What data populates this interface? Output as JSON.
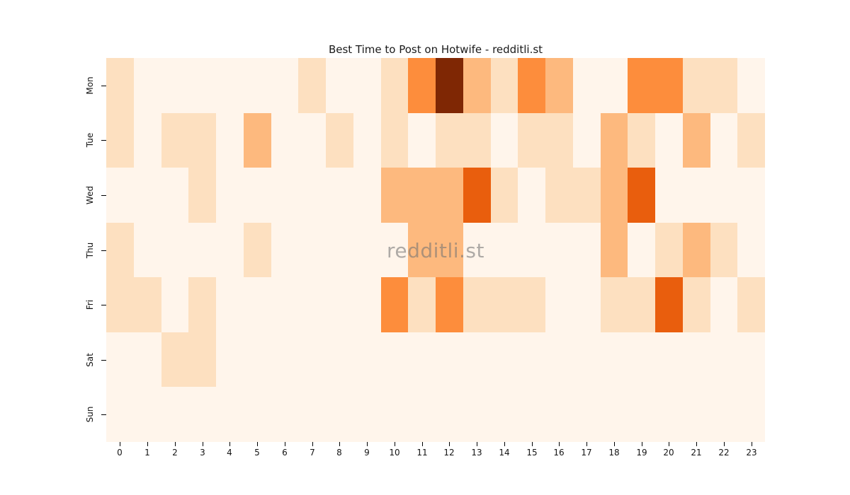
{
  "title": "Best Time to Post on Hotwife - redditli.st",
  "watermark": "redditli.st",
  "chart_data": {
    "type": "heatmap",
    "title": "Best Time to Post on Hotwife - redditli.st",
    "xlabel": "",
    "ylabel": "",
    "x_labels": [
      "0",
      "1",
      "2",
      "3",
      "4",
      "5",
      "6",
      "7",
      "8",
      "9",
      "10",
      "11",
      "12",
      "13",
      "14",
      "15",
      "16",
      "17",
      "18",
      "19",
      "20",
      "21",
      "22",
      "23"
    ],
    "y_labels": [
      "Mon",
      "Tue",
      "Wed",
      "Thu",
      "Fri",
      "Sat",
      "Sun"
    ],
    "values": [
      [
        1,
        0,
        0,
        0,
        0,
        0,
        0,
        1,
        0,
        0,
        1,
        3,
        6,
        2,
        1,
        3,
        2,
        0,
        0,
        3,
        3,
        1,
        1,
        0
      ],
      [
        1,
        0,
        1,
        1,
        0,
        2,
        0,
        0,
        1,
        0,
        1,
        0,
        1,
        1,
        0,
        1,
        1,
        0,
        2,
        1,
        0,
        2,
        0,
        1
      ],
      [
        0,
        0,
        0,
        1,
        0,
        0,
        0,
        0,
        0,
        0,
        2,
        2,
        2,
        4,
        1,
        0,
        1,
        1,
        2,
        4,
        0,
        0,
        0,
        0
      ],
      [
        1,
        0,
        0,
        0,
        0,
        1,
        0,
        0,
        0,
        0,
        0,
        2,
        2,
        0,
        0,
        0,
        0,
        0,
        2,
        0,
        1,
        2,
        1,
        0
      ],
      [
        1,
        1,
        0,
        1,
        0,
        0,
        0,
        0,
        0,
        0,
        3,
        1,
        3,
        1,
        1,
        1,
        0,
        0,
        1,
        1,
        4,
        1,
        0,
        1
      ],
      [
        0,
        0,
        1,
        1,
        0,
        0,
        0,
        0,
        0,
        0,
        0,
        0,
        0,
        0,
        0,
        0,
        0,
        0,
        0,
        0,
        0,
        0,
        0,
        0
      ],
      [
        0,
        0,
        0,
        0,
        0,
        0,
        0,
        0,
        0,
        0,
        0,
        0,
        0,
        0,
        0,
        0,
        0,
        0,
        0,
        0,
        0,
        0,
        0,
        0
      ]
    ],
    "vmin": 0,
    "vmax": 6,
    "colormap": "Oranges",
    "value_colors": {
      "0": "#fff5eb",
      "1": "#fde0c0",
      "2": "#fdb97e",
      "3": "#fd8d3c",
      "4": "#e95e0d",
      "5": "#d94801",
      "6": "#7f2704"
    },
    "grid": false,
    "legend": "none"
  }
}
